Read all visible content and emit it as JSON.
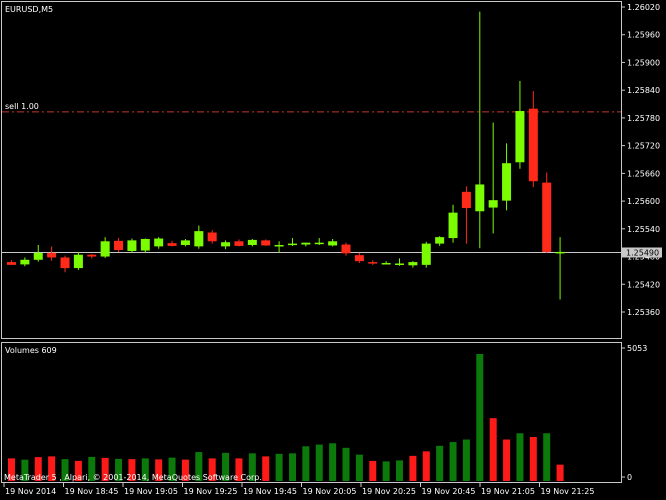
{
  "window": {
    "title": "EURUSD,M5",
    "volume_title": "Volumes 609",
    "copyright": "MetaTrader 5 , Alpari, © 2001-2014, MetaQuotes Software Corp.",
    "colors": {
      "bull": "#7cfc00",
      "bear": "#ff2a1a",
      "vol_up": "#0b7a0b",
      "vol_down": "#ff1a1a",
      "sell_line": "#c0392b",
      "grid": "#c8c8c8"
    }
  },
  "chart_data": [
    {
      "type": "candlestick",
      "title": "EURUSD,M5",
      "ylim": [
        1.253,
        1.2602
      ],
      "yticks": [
        "1.26020",
        "1.25960",
        "1.25900",
        "1.25840",
        "1.25780",
        "1.25720",
        "1.25660",
        "1.25600",
        "1.25540",
        "1.25480",
        "1.25420",
        "1.25360"
      ],
      "xticks": [
        "19 Nov 2014",
        "19 Nov 18:45",
        "19 Nov 19:05",
        "19 Nov 19:25",
        "19 Nov 19:45",
        "19 Nov 20:05",
        "19 Nov 20:25",
        "19 Nov 20:45",
        "19 Nov 21:05",
        "19 Nov 21:25"
      ],
      "bid": {
        "label": "1.25490",
        "value": 1.2549
      },
      "sell_line": {
        "label": "sell 1.00",
        "value": 1.25793
      },
      "candles": [
        {
          "o": 1.25468,
          "h": 1.25472,
          "l": 1.25462,
          "c": 1.25462
        },
        {
          "o": 1.25463,
          "h": 1.25478,
          "l": 1.25459,
          "c": 1.25473
        },
        {
          "o": 1.25473,
          "h": 1.25505,
          "l": 1.25469,
          "c": 1.25488
        },
        {
          "o": 1.25488,
          "h": 1.25502,
          "l": 1.25471,
          "c": 1.25478
        },
        {
          "o": 1.25478,
          "h": 1.25482,
          "l": 1.25446,
          "c": 1.25455
        },
        {
          "o": 1.25455,
          "h": 1.2549,
          "l": 1.25451,
          "c": 1.25484
        },
        {
          "o": 1.25484,
          "h": 1.25486,
          "l": 1.25476,
          "c": 1.2548
        },
        {
          "o": 1.2548,
          "h": 1.25522,
          "l": 1.25477,
          "c": 1.25513
        },
        {
          "o": 1.25514,
          "h": 1.2552,
          "l": 1.2549,
          "c": 1.25494
        },
        {
          "o": 1.25492,
          "h": 1.25519,
          "l": 1.25488,
          "c": 1.25515
        },
        {
          "o": 1.25493,
          "h": 1.25519,
          "l": 1.25489,
          "c": 1.25518
        },
        {
          "o": 1.25502,
          "h": 1.25522,
          "l": 1.25497,
          "c": 1.25519
        },
        {
          "o": 1.25509,
          "h": 1.25514,
          "l": 1.25502,
          "c": 1.25503
        },
        {
          "o": 1.25505,
          "h": 1.25518,
          "l": 1.25502,
          "c": 1.25515
        },
        {
          "o": 1.25502,
          "h": 1.25547,
          "l": 1.25497,
          "c": 1.25535
        },
        {
          "o": 1.25532,
          "h": 1.25537,
          "l": 1.25508,
          "c": 1.25513
        },
        {
          "o": 1.25502,
          "h": 1.25515,
          "l": 1.25496,
          "c": 1.25511
        },
        {
          "o": 1.25513,
          "h": 1.25517,
          "l": 1.25502,
          "c": 1.25503
        },
        {
          "o": 1.25505,
          "h": 1.25518,
          "l": 1.25502,
          "c": 1.25516
        },
        {
          "o": 1.25515,
          "h": 1.25517,
          "l": 1.25503,
          "c": 1.25504
        },
        {
          "o": 1.25505,
          "h": 1.25513,
          "l": 1.25488,
          "c": 1.25505
        },
        {
          "o": 1.25505,
          "h": 1.2552,
          "l": 1.25503,
          "c": 1.25508
        },
        {
          "o": 1.25506,
          "h": 1.2551,
          "l": 1.25502,
          "c": 1.2551
        },
        {
          "o": 1.25508,
          "h": 1.2552,
          "l": 1.25505,
          "c": 1.2551
        },
        {
          "o": 1.25504,
          "h": 1.25518,
          "l": 1.25502,
          "c": 1.25513
        },
        {
          "o": 1.25506,
          "h": 1.2551,
          "l": 1.25482,
          "c": 1.25487
        },
        {
          "o": 1.25483,
          "h": 1.25488,
          "l": 1.25466,
          "c": 1.2547
        },
        {
          "o": 1.25468,
          "h": 1.25472,
          "l": 1.25462,
          "c": 1.25466
        },
        {
          "o": 1.25466,
          "h": 1.2547,
          "l": 1.25463,
          "c": 1.25466
        },
        {
          "o": 1.25465,
          "h": 1.25476,
          "l": 1.2546,
          "c": 1.25465
        },
        {
          "o": 1.25461,
          "h": 1.2547,
          "l": 1.25456,
          "c": 1.25468
        },
        {
          "o": 1.25462,
          "h": 1.25512,
          "l": 1.25456,
          "c": 1.25508
        },
        {
          "o": 1.25508,
          "h": 1.25524,
          "l": 1.25503,
          "c": 1.25522
        },
        {
          "o": 1.2552,
          "h": 1.25592,
          "l": 1.2551,
          "c": 1.25575
        },
        {
          "o": 1.2562,
          "h": 1.25632,
          "l": 1.25508,
          "c": 1.25585
        },
        {
          "o": 1.25578,
          "h": 1.2601,
          "l": 1.25498,
          "c": 1.25636
        },
        {
          "o": 1.25586,
          "h": 1.2577,
          "l": 1.2553,
          "c": 1.25602
        },
        {
          "o": 1.25601,
          "h": 1.25725,
          "l": 1.2558,
          "c": 1.25682
        },
        {
          "o": 1.25684,
          "h": 1.2586,
          "l": 1.2567,
          "c": 1.25795
        },
        {
          "o": 1.258,
          "h": 1.25838,
          "l": 1.2563,
          "c": 1.25643
        },
        {
          "o": 1.2564,
          "h": 1.25662,
          "l": 1.25488,
          "c": 1.2549
        },
        {
          "o": 1.2549,
          "h": 1.25522,
          "l": 1.25387,
          "c": 1.2549
        }
      ]
    },
    {
      "type": "bar",
      "title": "Volumes 609",
      "ylim": [
        0,
        5053
      ],
      "yticks": [
        "5053",
        "0"
      ],
      "values": [
        900,
        850,
        950,
        980,
        870,
        800,
        960,
        920,
        880,
        870,
        900,
        860,
        930,
        850,
        1150,
        900,
        1120,
        900,
        1100,
        980,
        1080,
        1100,
        1380,
        1450,
        1500,
        1320,
        1050,
        800,
        780,
        820,
        1000,
        1180,
        1400,
        1550,
        1650,
        5053,
        2500,
        1650,
        1900,
        1750,
        1900,
        650
      ],
      "colors": [
        "down",
        "up",
        "down",
        "down",
        "up",
        "down",
        "up",
        "down",
        "up",
        "down",
        "up",
        "down",
        "up",
        "down",
        "up",
        "down",
        "up",
        "down",
        "up",
        "down",
        "up",
        "up",
        "up",
        "up",
        "up",
        "up",
        "up",
        "down",
        "up",
        "up",
        "down",
        "down",
        "up",
        "up",
        "up",
        "up",
        "down",
        "down",
        "up",
        "down",
        "up",
        "down"
      ]
    }
  ]
}
